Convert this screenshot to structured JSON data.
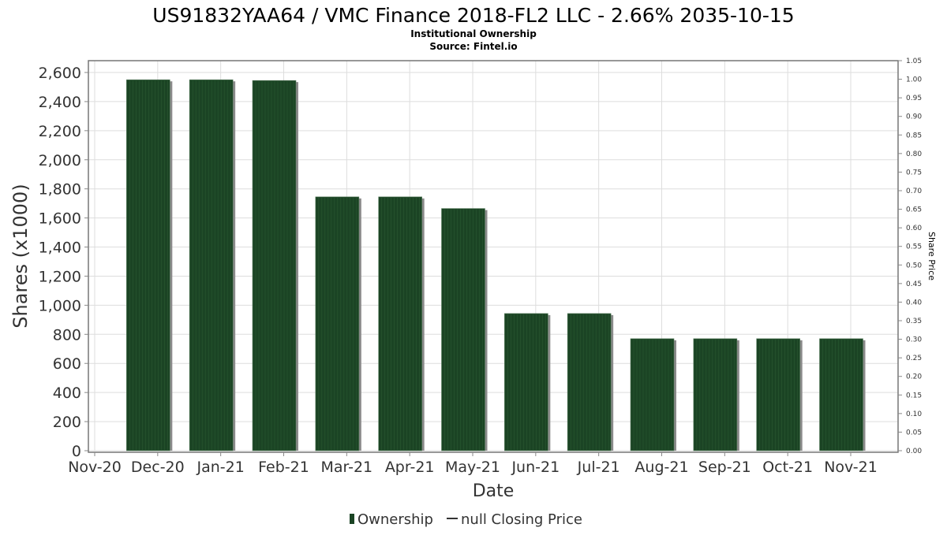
{
  "chart_data": {
    "type": "bar",
    "title": "US91832YAA64 / VMC Finance 2018-FL2 LLC - 2.66% 2035-10-15",
    "subtitle": "Institutional Ownership",
    "source": "Source: Fintel.io",
    "xlabel": "Date",
    "ylabel": "Shares (x1000)",
    "y2label": "Share Price",
    "categories": [
      "Dec-20",
      "Jan-21",
      "Feb-21",
      "Mar-21",
      "Apr-21",
      "May-21",
      "Jun-21",
      "Jul-21",
      "Aug-21",
      "Sep-21",
      "Oct-21",
      "Nov-21"
    ],
    "x_ticks": [
      "Nov-20",
      "Dec-20",
      "Jan-21",
      "Feb-21",
      "Mar-21",
      "Apr-21",
      "May-21",
      "Jun-21",
      "Jul-21",
      "Aug-21",
      "Sep-21",
      "Oct-21",
      "Nov-21"
    ],
    "series": [
      {
        "name": "Ownership",
        "values": [
          2550,
          2550,
          2545,
          1745,
          1745,
          1665,
          943,
          943,
          770,
          770,
          770,
          770
        ],
        "color": "#1b4424"
      }
    ],
    "ylim": [
      0,
      2600
    ],
    "y_ticks": [
      "0",
      "200",
      "400",
      "600",
      "800",
      "1,000",
      "1,200",
      "1,400",
      "1,600",
      "1,800",
      "2,000",
      "2,200",
      "2,400",
      "2,600"
    ],
    "y2lim": [
      0,
      1.05
    ],
    "y2_ticks": [
      "0.00",
      "0.05",
      "0.10",
      "0.15",
      "0.20",
      "0.25",
      "0.30",
      "0.35",
      "0.40",
      "0.45",
      "0.50",
      "0.55",
      "0.60",
      "0.65",
      "0.70",
      "0.75",
      "0.80",
      "0.85",
      "0.90",
      "0.95",
      "1.00",
      "1.05"
    ],
    "legend": {
      "position": "bottom",
      "items": [
        "Ownership",
        "null Closing Price"
      ]
    },
    "grid": true
  }
}
